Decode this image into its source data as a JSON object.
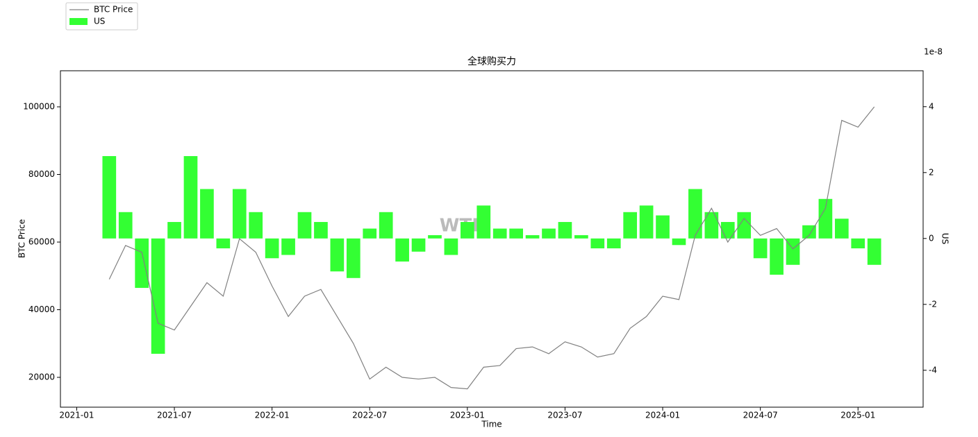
{
  "chart_data": {
    "type": "combo",
    "title": "全球购买力",
    "x_label": "Time",
    "y_label": "BTC Price",
    "y2_label": "US",
    "y2_offset": "1e-8",
    "watermark": "WTR",
    "x": [
      "2021-03",
      "2021-04",
      "2021-05",
      "2021-06",
      "2021-07",
      "2021-08",
      "2021-09",
      "2021-10",
      "2021-11",
      "2021-12",
      "2022-01",
      "2022-02",
      "2022-03",
      "2022-04",
      "2022-05",
      "2022-06",
      "2022-07",
      "2022-08",
      "2022-09",
      "2022-10",
      "2022-11",
      "2022-12",
      "2023-01",
      "2023-02",
      "2023-03",
      "2023-04",
      "2023-05",
      "2023-06",
      "2023-07",
      "2023-08",
      "2023-09",
      "2023-10",
      "2023-11",
      "2023-12",
      "2024-01",
      "2024-02",
      "2024-03",
      "2024-04",
      "2024-05",
      "2024-06",
      "2024-07",
      "2024-08",
      "2024-09",
      "2024-10",
      "2024-11",
      "2024-12",
      "2025-01",
      "2025-02"
    ],
    "series": [
      {
        "name": "US",
        "type": "bar",
        "axis": "y2",
        "color": "#33ff33",
        "values": [
          2.5,
          0.8,
          -1.5,
          -3.5,
          0.5,
          2.5,
          1.5,
          -0.3,
          1.5,
          0.8,
          -0.6,
          -0.5,
          0.8,
          0.5,
          -1.0,
          -1.2,
          0.3,
          0.8,
          -0.7,
          -0.4,
          0.1,
          -0.5,
          0.5,
          1.0,
          0.3,
          0.3,
          0.1,
          0.3,
          0.5,
          0.1,
          -0.3,
          -0.3,
          0.8,
          1.0,
          0.7,
          -0.2,
          1.5,
          0.8,
          0.5,
          0.8,
          -0.6,
          -1.1,
          -0.8,
          0.4,
          1.2,
          0.6,
          -0.3,
          -0.8
        ]
      },
      {
        "name": "BTC Price",
        "type": "line",
        "axis": "y",
        "color": "#808080",
        "values": [
          49000,
          59000,
          57000,
          36000,
          34000,
          41000,
          48000,
          44000,
          61000,
          57000,
          47000,
          38000,
          44000,
          46000,
          38000,
          30000,
          19500,
          23000,
          20000,
          19500,
          20000,
          17000,
          16600,
          23000,
          23500,
          28500,
          29000,
          27000,
          30500,
          29000,
          26000,
          27000,
          34500,
          38000,
          44000,
          43000,
          62000,
          70000,
          60000,
          67000,
          62000,
          64000,
          58000,
          62000,
          70000,
          96000,
          94000,
          100000
        ]
      }
    ],
    "xlim": [
      "2020-12",
      "2025-05"
    ],
    "xticks": [
      "2021-01",
      "2021-07",
      "2022-01",
      "2022-07",
      "2023-01",
      "2023-07",
      "2024-01",
      "2024-07",
      "2025-01"
    ],
    "ylim": [
      11180,
      110670
    ],
    "yticks": [
      20000,
      40000,
      60000,
      80000,
      100000
    ],
    "y2lim": [
      -5.12,
      5.09
    ],
    "y2ticks": [
      -4,
      -2,
      0,
      2,
      4
    ],
    "legend": "upper-left-outside"
  }
}
